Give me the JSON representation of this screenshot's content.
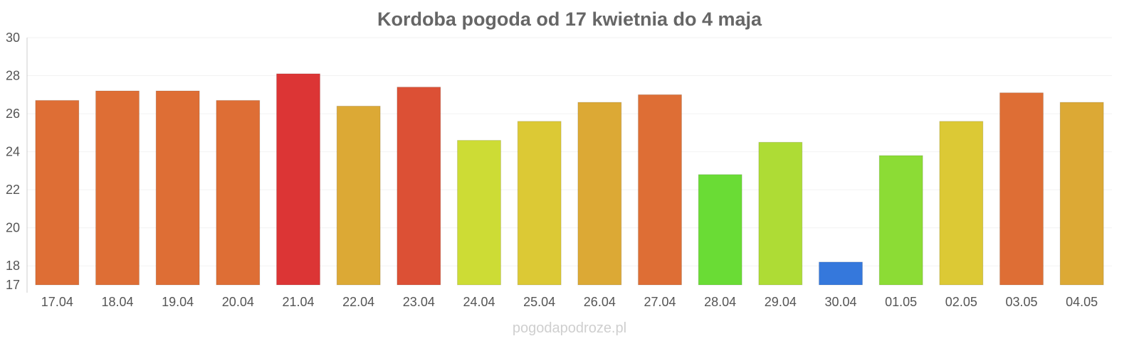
{
  "chart_data": {
    "type": "bar",
    "title": "Kordoba pogoda od 17 kwietnia do 4 maja",
    "xlabel": "",
    "ylabel": "",
    "ylim": [
      17,
      30
    ],
    "yticks": [
      17,
      18,
      20,
      22,
      24,
      26,
      28,
      30
    ],
    "grid": true,
    "categories": [
      "17.04",
      "18.04",
      "19.04",
      "20.04",
      "21.04",
      "22.04",
      "23.04",
      "24.04",
      "25.04",
      "26.04",
      "27.04",
      "28.04",
      "29.04",
      "30.04",
      "01.05",
      "02.05",
      "03.05",
      "04.05"
    ],
    "values": [
      26.7,
      27.2,
      27.2,
      26.7,
      28.1,
      26.4,
      27.4,
      24.6,
      25.6,
      26.6,
      27.0,
      22.8,
      24.5,
      18.2,
      23.8,
      25.6,
      27.1,
      26.6
    ],
    "colors": [
      "#de6e35",
      "#de6e35",
      "#de6e35",
      "#de6e35",
      "#dc3535",
      "#dca935",
      "#dc5035",
      "#cddc35",
      "#dcc935",
      "#dca935",
      "#de6e35",
      "#6adc35",
      "#aedc35",
      "#3578dc",
      "#8cdc35",
      "#dcc935",
      "#de6e35",
      "#dca935"
    ]
  },
  "watermark": "pogodapodroze.pl"
}
